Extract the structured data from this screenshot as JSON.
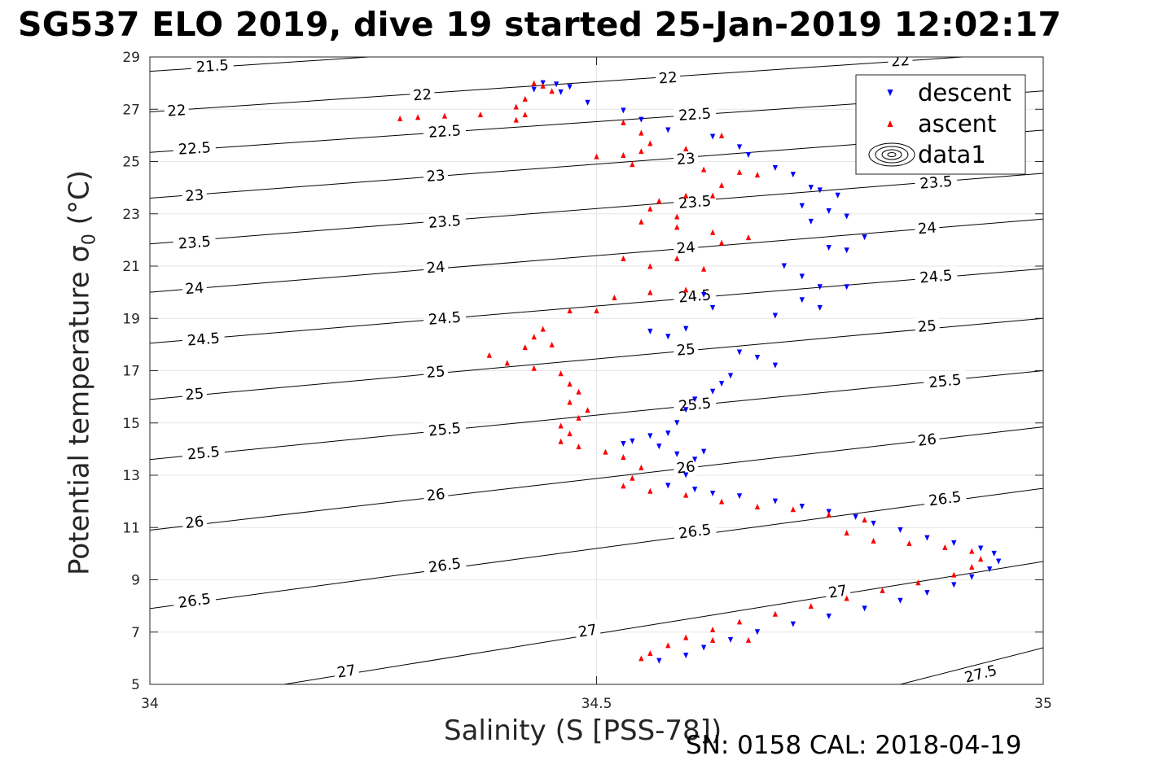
{
  "title": "SG537 ELO 2019, dive 19 started 25-Jan-2019 12:02:17",
  "footer": "SN: 0158  CAL: 2018-04-19",
  "colors": {
    "descent": "#0000ff",
    "ascent": "#ff0000",
    "contour": "#000000",
    "grid": "#e6e6e6"
  },
  "chart_data": {
    "type": "scatter",
    "xlabel": "Salinity (S [PSS-78])",
    "ylabel_main": "Potential temperature σ",
    "ylabel_sub": "0",
    "ylabel_unit": " (°C)",
    "xlim": [
      34,
      35
    ],
    "ylim": [
      5,
      29
    ],
    "xticks": [
      "34",
      "34.5",
      "35"
    ],
    "yticks": [
      "5",
      "7",
      "9",
      "11",
      "13",
      "15",
      "17",
      "19",
      "21",
      "23",
      "25",
      "27",
      "29"
    ],
    "grid": true,
    "legend_position": "top-right",
    "legend": [
      {
        "name": "descent",
        "marker": "triangle-down",
        "color": "#0000ff"
      },
      {
        "name": "ascent",
        "marker": "triangle-up",
        "color": "#ff0000"
      },
      {
        "name": "data1",
        "marker": "contour",
        "color": "#000000"
      }
    ],
    "contours": [
      {
        "level": 21.5,
        "p1": [
          34.0,
          28.45
        ],
        "p2": [
          34.245,
          29.0
        ],
        "labels": [
          [
            34.07,
            28.65
          ]
        ]
      },
      {
        "level": 22,
        "p1": [
          34.0,
          26.9
        ],
        "p2": [
          34.91,
          29.0
        ],
        "labels": [
          [
            34.03,
            26.95
          ],
          [
            34.305,
            27.55
          ],
          [
            34.58,
            28.2
          ],
          [
            34.84,
            28.85
          ]
        ]
      },
      {
        "level": 22.5,
        "p1": [
          34.0,
          25.35
        ],
        "p2": [
          35.0,
          27.7
        ],
        "labels": [
          [
            34.05,
            25.5
          ],
          [
            34.33,
            26.15
          ],
          [
            34.61,
            26.8
          ]
        ]
      },
      {
        "level": 23,
        "p1": [
          34.0,
          23.6
        ],
        "p2": [
          35.0,
          26.2
        ],
        "labels": [
          [
            34.05,
            23.7
          ],
          [
            34.32,
            24.45
          ],
          [
            34.6,
            25.1
          ]
        ]
      },
      {
        "level": 23.5,
        "p1": [
          34.0,
          21.85
        ],
        "p2": [
          35.0,
          24.55
        ],
        "labels": [
          [
            34.05,
            21.9
          ],
          [
            34.33,
            22.7
          ],
          [
            34.61,
            23.45
          ],
          [
            34.88,
            24.2
          ]
        ]
      },
      {
        "level": 24,
        "p1": [
          34.0,
          20.0
        ],
        "p2": [
          35.0,
          22.8
        ],
        "labels": [
          [
            34.05,
            20.15
          ],
          [
            34.32,
            20.95
          ],
          [
            34.6,
            21.7
          ],
          [
            34.87,
            22.45
          ]
        ]
      },
      {
        "level": 24.5,
        "p1": [
          34.0,
          18.05
        ],
        "p2": [
          35.0,
          20.9
        ],
        "labels": [
          [
            34.06,
            18.2
          ],
          [
            34.33,
            19.0
          ],
          [
            34.61,
            19.85
          ],
          [
            34.88,
            20.6
          ]
        ]
      },
      {
        "level": 25,
        "p1": [
          34.0,
          15.9
        ],
        "p2": [
          35.0,
          19.0
        ],
        "labels": [
          [
            34.05,
            16.1
          ],
          [
            34.32,
            16.95
          ],
          [
            34.6,
            17.8
          ],
          [
            34.87,
            18.7
          ]
        ]
      },
      {
        "level": 25.5,
        "p1": [
          34.0,
          13.6
        ],
        "p2": [
          35.0,
          17.0
        ],
        "labels": [
          [
            34.06,
            13.85
          ],
          [
            34.33,
            14.75
          ],
          [
            34.61,
            15.7
          ],
          [
            34.89,
            16.6
          ]
        ]
      },
      {
        "level": 26,
        "p1": [
          34.0,
          10.9
        ],
        "p2": [
          35.0,
          14.85
        ],
        "labels": [
          [
            34.05,
            11.2
          ],
          [
            34.32,
            12.25
          ],
          [
            34.6,
            13.3
          ],
          [
            34.87,
            14.35
          ]
        ]
      },
      {
        "level": 26.5,
        "p1": [
          34.0,
          7.9
        ],
        "p2": [
          35.0,
          12.5
        ],
        "labels": [
          [
            34.05,
            8.2
          ],
          [
            34.33,
            9.55
          ],
          [
            34.61,
            10.85
          ],
          [
            34.89,
            12.1
          ]
        ]
      },
      {
        "level": 27,
        "p1": [
          34.15,
          5.0
        ],
        "p2": [
          35.0,
          9.7
        ],
        "labels": [
          [
            34.22,
            5.5
          ],
          [
            34.49,
            7.05
          ],
          [
            34.77,
            8.55
          ]
        ]
      },
      {
        "level": 27.5,
        "p1": [
          34.84,
          5.0
        ],
        "p2": [
          35.0,
          6.4
        ],
        "labels": [
          [
            34.93,
            5.4
          ]
        ]
      }
    ],
    "series": [
      {
        "name": "descent",
        "marker": "triangle-down",
        "points": [
          [
            34.44,
            28.0
          ],
          [
            34.455,
            27.95
          ],
          [
            34.47,
            27.85
          ],
          [
            34.43,
            27.75
          ],
          [
            34.46,
            27.65
          ],
          [
            34.49,
            27.25
          ],
          [
            34.53,
            26.95
          ],
          [
            34.55,
            26.6
          ],
          [
            34.58,
            26.2
          ],
          [
            34.63,
            25.95
          ],
          [
            34.66,
            25.55
          ],
          [
            34.67,
            25.25
          ],
          [
            34.7,
            24.75
          ],
          [
            34.72,
            24.5
          ],
          [
            34.74,
            24.0
          ],
          [
            34.75,
            23.9
          ],
          [
            34.77,
            23.7
          ],
          [
            34.73,
            23.3
          ],
          [
            34.76,
            23.1
          ],
          [
            34.78,
            22.9
          ],
          [
            34.74,
            22.7
          ],
          [
            34.8,
            22.1
          ],
          [
            34.76,
            21.7
          ],
          [
            34.78,
            21.6
          ],
          [
            34.71,
            21.0
          ],
          [
            34.73,
            20.6
          ],
          [
            34.75,
            20.2
          ],
          [
            34.78,
            20.2
          ],
          [
            34.73,
            19.7
          ],
          [
            34.75,
            19.4
          ],
          [
            34.7,
            19.1
          ],
          [
            34.62,
            19.9
          ],
          [
            34.63,
            19.4
          ],
          [
            34.6,
            18.6
          ],
          [
            34.58,
            18.3
          ],
          [
            34.56,
            18.5
          ],
          [
            34.66,
            17.7
          ],
          [
            34.68,
            17.5
          ],
          [
            34.7,
            17.2
          ],
          [
            34.65,
            16.8
          ],
          [
            34.64,
            16.5
          ],
          [
            34.63,
            16.2
          ],
          [
            34.61,
            15.9
          ],
          [
            34.6,
            15.5
          ],
          [
            34.59,
            15.0
          ],
          [
            34.58,
            14.6
          ],
          [
            34.56,
            14.5
          ],
          [
            34.54,
            14.3
          ],
          [
            34.53,
            14.2
          ],
          [
            34.57,
            14.1
          ],
          [
            34.59,
            13.8
          ],
          [
            34.61,
            13.6
          ],
          [
            34.62,
            13.9
          ],
          [
            34.6,
            13.0
          ],
          [
            34.58,
            12.6
          ],
          [
            34.61,
            12.45
          ],
          [
            34.63,
            12.3
          ],
          [
            34.66,
            12.2
          ],
          [
            34.7,
            12.0
          ],
          [
            34.73,
            11.8
          ],
          [
            34.76,
            11.6
          ],
          [
            34.79,
            11.4
          ],
          [
            34.81,
            11.15
          ],
          [
            34.84,
            10.9
          ],
          [
            34.87,
            10.6
          ],
          [
            34.9,
            10.4
          ],
          [
            34.93,
            10.2
          ],
          [
            34.945,
            10.0
          ],
          [
            34.95,
            9.7
          ],
          [
            34.94,
            9.4
          ],
          [
            34.92,
            9.1
          ],
          [
            34.9,
            8.8
          ],
          [
            34.87,
            8.5
          ],
          [
            34.84,
            8.2
          ],
          [
            34.8,
            7.9
          ],
          [
            34.76,
            7.6
          ],
          [
            34.72,
            7.3
          ],
          [
            34.68,
            7.0
          ],
          [
            34.65,
            6.7
          ],
          [
            34.62,
            6.4
          ],
          [
            34.6,
            6.1
          ],
          [
            34.57,
            5.9
          ]
        ]
      },
      {
        "name": "ascent",
        "marker": "triangle-up",
        "points": [
          [
            34.43,
            28.0
          ],
          [
            34.44,
            27.9
          ],
          [
            34.45,
            27.7
          ],
          [
            34.42,
            27.4
          ],
          [
            34.41,
            27.1
          ],
          [
            34.42,
            26.8
          ],
          [
            34.37,
            26.8
          ],
          [
            34.33,
            26.75
          ],
          [
            34.3,
            26.7
          ],
          [
            34.28,
            26.65
          ],
          [
            34.41,
            26.6
          ],
          [
            34.53,
            26.5
          ],
          [
            34.55,
            26.1
          ],
          [
            34.56,
            25.7
          ],
          [
            34.55,
            25.4
          ],
          [
            34.53,
            25.25
          ],
          [
            34.5,
            25.2
          ],
          [
            34.54,
            24.9
          ],
          [
            34.6,
            25.5
          ],
          [
            34.64,
            26.0
          ],
          [
            34.62,
            24.7
          ],
          [
            34.66,
            24.6
          ],
          [
            34.68,
            24.5
          ],
          [
            34.64,
            24.1
          ],
          [
            34.63,
            23.7
          ],
          [
            34.6,
            23.7
          ],
          [
            34.57,
            23.5
          ],
          [
            34.56,
            23.2
          ],
          [
            34.59,
            22.9
          ],
          [
            34.55,
            22.7
          ],
          [
            34.59,
            22.5
          ],
          [
            34.63,
            22.3
          ],
          [
            34.67,
            22.1
          ],
          [
            34.64,
            21.9
          ],
          [
            34.53,
            21.3
          ],
          [
            34.56,
            21.0
          ],
          [
            34.59,
            21.3
          ],
          [
            34.62,
            20.9
          ],
          [
            34.6,
            20.1
          ],
          [
            34.56,
            20.0
          ],
          [
            34.52,
            19.8
          ],
          [
            34.5,
            19.3
          ],
          [
            34.47,
            19.3
          ],
          [
            34.44,
            18.6
          ],
          [
            34.43,
            18.3
          ],
          [
            34.45,
            18.0
          ],
          [
            34.42,
            17.9
          ],
          [
            34.38,
            17.6
          ],
          [
            34.4,
            17.3
          ],
          [
            34.43,
            17.1
          ],
          [
            34.46,
            16.9
          ],
          [
            34.47,
            16.5
          ],
          [
            34.48,
            16.2
          ],
          [
            34.47,
            15.8
          ],
          [
            34.49,
            15.5
          ],
          [
            34.48,
            15.2
          ],
          [
            34.46,
            14.9
          ],
          [
            34.47,
            14.6
          ],
          [
            34.46,
            14.3
          ],
          [
            34.48,
            14.1
          ],
          [
            34.51,
            13.9
          ],
          [
            34.53,
            13.7
          ],
          [
            34.55,
            13.3
          ],
          [
            34.54,
            12.9
          ],
          [
            34.53,
            12.6
          ],
          [
            34.56,
            12.4
          ],
          [
            34.6,
            12.25
          ],
          [
            34.64,
            12.0
          ],
          [
            34.68,
            11.8
          ],
          [
            34.72,
            11.7
          ],
          [
            34.76,
            11.5
          ],
          [
            34.8,
            11.3
          ],
          [
            34.78,
            10.8
          ],
          [
            34.81,
            10.5
          ],
          [
            34.85,
            10.4
          ],
          [
            34.89,
            10.25
          ],
          [
            34.92,
            10.1
          ],
          [
            34.93,
            9.8
          ],
          [
            34.92,
            9.5
          ],
          [
            34.9,
            9.2
          ],
          [
            34.86,
            8.9
          ],
          [
            34.82,
            8.6
          ],
          [
            34.78,
            8.3
          ],
          [
            34.74,
            8.0
          ],
          [
            34.7,
            7.7
          ],
          [
            34.66,
            7.4
          ],
          [
            34.63,
            7.1
          ],
          [
            34.6,
            6.8
          ],
          [
            34.58,
            6.5
          ],
          [
            34.56,
            6.2
          ],
          [
            34.55,
            6.0
          ],
          [
            34.63,
            6.7
          ],
          [
            34.67,
            6.7
          ]
        ]
      }
    ]
  }
}
